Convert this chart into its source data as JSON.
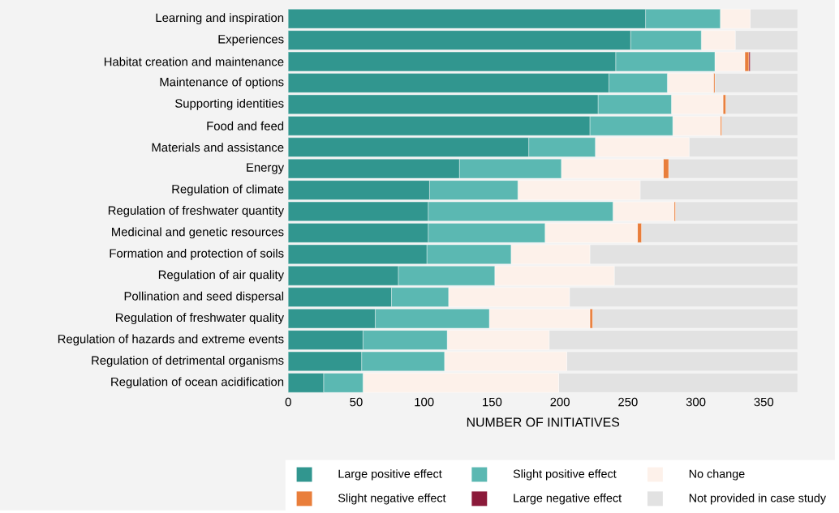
{
  "chart_data": {
    "type": "bar",
    "orientation": "horizontal",
    "stacked": true,
    "xlabel": "NUMBER OF INITIATIVES",
    "categories": [
      "Learning and inspiration",
      "Experiences",
      "Habitat creation and maintenance",
      "Maintenance of options",
      "Supporting identities",
      "Food and feed",
      "Materials and assistance",
      "Energy",
      "Regulation of climate",
      "Regulation of freshwater quantity",
      "Medicinal and genetic resources",
      "Formation and protection of soils",
      "Regulation of air quality",
      "Pollination and seed dispersal",
      "Regulation of freshwater quality",
      "Regulation of hazards and extreme events",
      "Regulation of detrimental organisms",
      "Regulation of ocean acidification"
    ],
    "series": [
      {
        "name": "Large positive effect",
        "color": "#31968f",
        "values": [
          263,
          252,
          241,
          236,
          228,
          222,
          177,
          126,
          104,
          103,
          103,
          102,
          81,
          76,
          64,
          55,
          54,
          26
        ]
      },
      {
        "name": "Slight positive effect",
        "color": "#5bb8b2",
        "values": [
          55,
          52,
          73,
          43,
          54,
          61,
          49,
          75,
          65,
          136,
          86,
          62,
          71,
          42,
          84,
          62,
          61,
          29
        ]
      },
      {
        "name": "No change",
        "color": "#fdf1ea",
        "values": [
          22,
          25,
          22,
          34,
          38,
          35,
          69,
          75,
          90,
          45,
          68,
          58,
          88,
          89,
          74,
          75,
          90,
          144
        ]
      },
      {
        "name": "Slight negative effect",
        "color": "#e97e3b",
        "values": [
          0,
          0,
          3,
          1,
          2,
          1,
          0,
          4,
          0,
          1,
          3,
          0,
          0,
          0,
          2,
          0,
          0,
          0
        ]
      },
      {
        "name": "Large negative effect",
        "color": "#8b1a3a",
        "values": [
          0,
          0,
          1,
          0,
          0,
          0,
          0,
          0,
          0,
          0,
          0,
          0,
          0,
          0,
          0,
          0,
          0,
          0
        ]
      },
      {
        "name": "Not provided in case study",
        "color": "#e2e2e2",
        "values": [
          35,
          46,
          35,
          61,
          53,
          56,
          80,
          95,
          116,
          90,
          115,
          153,
          135,
          168,
          151,
          183,
          170,
          176
        ]
      }
    ],
    "xlim": [
      0,
      375
    ],
    "xticks": [
      0,
      50,
      100,
      150,
      200,
      250,
      300,
      350
    ],
    "legend": "bottom"
  }
}
